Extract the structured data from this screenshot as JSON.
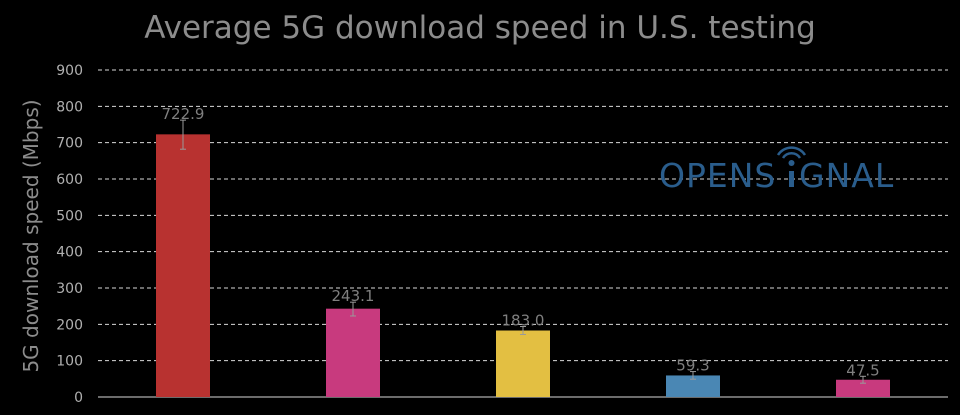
{
  "chart_data": {
    "type": "bar",
    "title": "Average 5G download speed in U.S. testing",
    "xlabel": "",
    "ylabel": "5G download speed (Mbps)",
    "ylim": [
      0,
      900
    ],
    "yticks": [
      0,
      100,
      200,
      300,
      400,
      500,
      600,
      700,
      800,
      900
    ],
    "grid": true,
    "values": [
      722.9,
      243.1,
      183.0,
      59.3,
      47.5
    ],
    "value_labels": [
      "722.9",
      "243.1",
      "183.0",
      "59.3",
      "47.5"
    ],
    "error_low": [
      682,
      223,
      172,
      49,
      38
    ],
    "error_high": [
      762,
      261,
      194,
      70,
      57
    ],
    "colors": [
      "#b83230",
      "#c83a7e",
      "#e3bf42",
      "#4a87b4",
      "#c83a7e"
    ]
  },
  "logo": {
    "text_left": "OPENS",
    "text_right": "GNAL",
    "color": "#2a5d8c"
  }
}
